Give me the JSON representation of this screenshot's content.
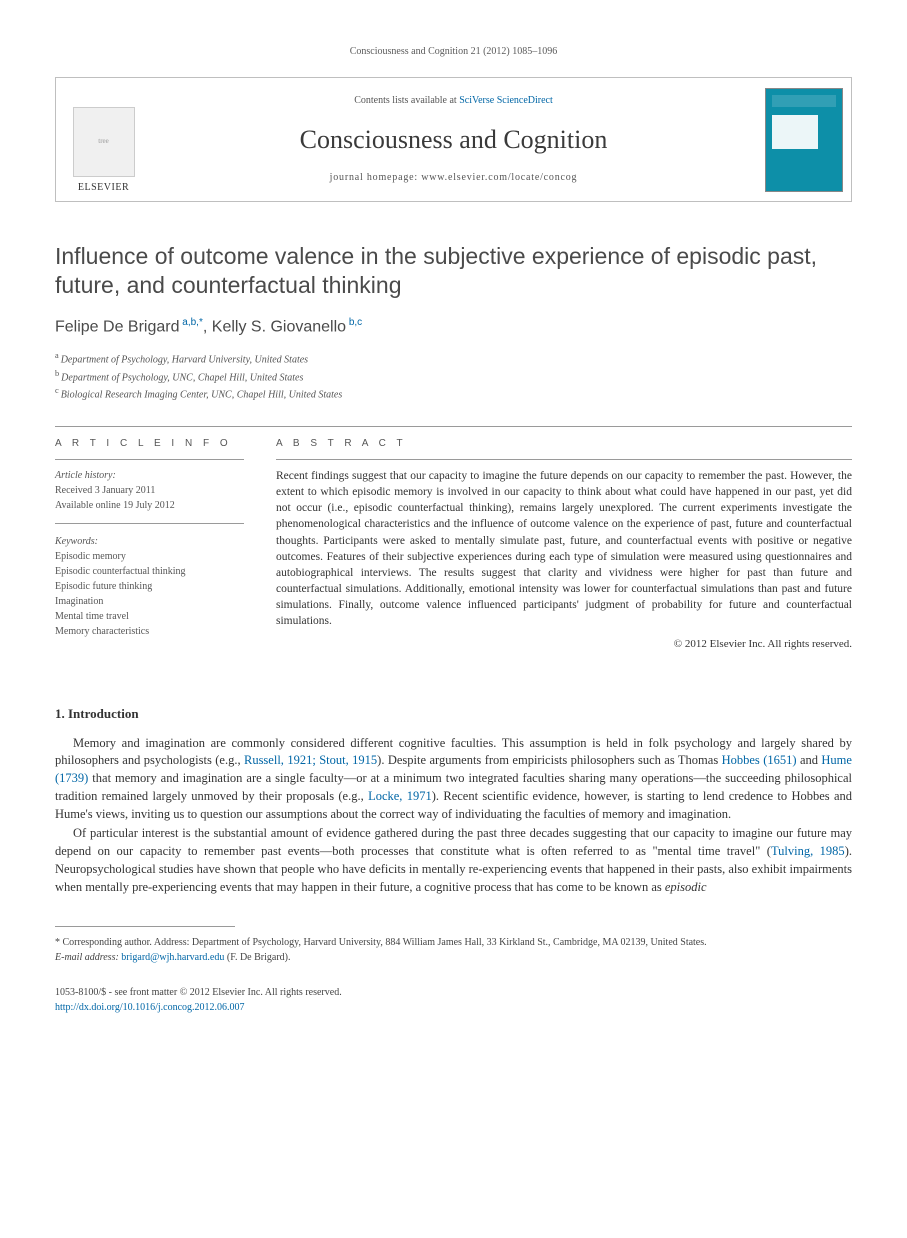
{
  "header_ref": "Consciousness and Cognition 21 (2012) 1085–1096",
  "banner": {
    "contents_prefix": "Contents lists available at ",
    "contents_link": "SciVerse ScienceDirect",
    "journal_title": "Consciousness and Cognition",
    "homepage_prefix": "journal homepage: ",
    "homepage_url": "www.elsevier.com/locate/concog",
    "publisher": "ELSEVIER"
  },
  "article": {
    "title": "Influence of outcome valence in the subjective experience of episodic past, future, and counterfactual thinking",
    "authors_html": "Felipe De Brigard <sup>a,b,*</sup>, Kelly S. Giovanello <sup>b,c</sup>",
    "affiliations": [
      {
        "sup": "a",
        "text": "Department of Psychology, Harvard University, United States"
      },
      {
        "sup": "b",
        "text": "Department of Psychology, UNC, Chapel Hill, United States"
      },
      {
        "sup": "c",
        "text": "Biological Research Imaging Center, UNC, Chapel Hill, United States"
      }
    ]
  },
  "info": {
    "heading": "A R T I C L E   I N F O",
    "history_label": "Article history:",
    "received": "Received 3 January 2011",
    "online": "Available online 19 July 2012",
    "keywords_label": "Keywords:",
    "keywords": [
      "Episodic memory",
      "Episodic counterfactual thinking",
      "Episodic future thinking",
      "Imagination",
      "Mental time travel",
      "Memory characteristics"
    ]
  },
  "abstract": {
    "heading": "A B S T R A C T",
    "text": "Recent findings suggest that our capacity to imagine the future depends on our capacity to remember the past. However, the extent to which episodic memory is involved in our capacity to think about what could have happened in our past, yet did not occur (i.e., episodic counterfactual thinking), remains largely unexplored. The current experiments investigate the phenomenological characteristics and the influence of outcome valence on the experience of past, future and counterfactual thoughts. Participants were asked to mentally simulate past, future, and counterfactual events with positive or negative outcomes. Features of their subjective experiences during each type of simulation were measured using questionnaires and autobiographical interviews. The results suggest that clarity and vividness were higher for past than future and counterfactual simulations. Additionally, emotional intensity was lower for counterfactual simulations than past and future simulations. Finally, outcome valence influenced participants' judgment of probability for future and counterfactual simulations.",
    "copyright": "© 2012 Elsevier Inc. All rights reserved."
  },
  "intro": {
    "heading": "1. Introduction",
    "p1_pre": "Memory and imagination are commonly considered different cognitive faculties. This assumption is held in folk psychology and largely shared by philosophers and psychologists (e.g., ",
    "p1_ref1": "Russell, 1921; Stout, 1915",
    "p1_mid1": "). Despite arguments from empiricists philosophers such as Thomas ",
    "p1_ref2": "Hobbes (1651)",
    "p1_mid2": " and ",
    "p1_ref3": "Hume (1739)",
    "p1_mid3": " that memory and imagination are a single faculty—or at a minimum two integrated faculties sharing many operations—the succeeding philosophical tradition remained largely unmoved by their proposals (e.g., ",
    "p1_ref4": "Locke, 1971",
    "p1_post": "). Recent scientific evidence, however, is starting to lend credence to Hobbes and Hume's views, inviting us to question our assumptions about the correct way of individuating the faculties of memory and imagination.",
    "p2_pre": "Of particular interest is the substantial amount of evidence gathered during the past three decades suggesting that our capacity to imagine our future may depend on our capacity to remember past events—both processes that constitute what is often referred to as \"mental time travel\" (",
    "p2_ref1": "Tulving, 1985",
    "p2_mid": "). Neuropsychological studies have shown that people who have deficits in mentally re-experiencing events that happened in their pasts, also exhibit impairments when mentally pre-experiencing events that may happen in their future, a cognitive process that has come to be known as ",
    "p2_em": "episodic"
  },
  "footnote": {
    "corr_pre": "* Corresponding author. Address: Department of Psychology, Harvard University, 884 William James Hall, 33 Kirkland St., Cambridge, MA 02139, United States.",
    "email_label": "E-mail address:",
    "email": "brigard@wjh.harvard.edu",
    "email_suffix": "(F. De Brigard)."
  },
  "bottom": {
    "issn_line": "1053-8100/$ - see front matter © 2012 Elsevier Inc. All rights reserved.",
    "doi": "http://dx.doi.org/10.1016/j.concog.2012.06.007"
  }
}
